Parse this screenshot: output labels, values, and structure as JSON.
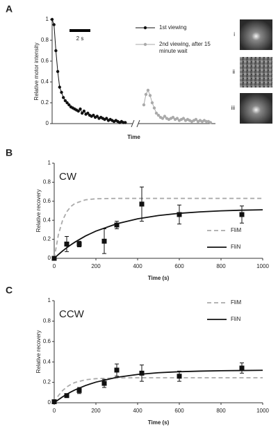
{
  "chart_data": [
    {
      "type": "line",
      "panel": "A",
      "ylabel": "Relative motor intensity",
      "xlabel": "Time",
      "xlim": [
        0,
        15.67
      ],
      "ylim": [
        0,
        1
      ],
      "yticks": [
        0,
        0.2,
        0.4,
        0.6,
        0.8,
        1
      ],
      "x_break": 8,
      "scale_bar": {
        "label": "2 s",
        "length": 2
      },
      "insets": [
        "i",
        "ii",
        "iii"
      ],
      "series": [
        {
          "name": "1st viewing",
          "color": "#111111",
          "marker": "circle",
          "line": true,
          "x": [
            0,
            0.18,
            0.36,
            0.54,
            0.72,
            0.9,
            1.08,
            1.26,
            1.44,
            1.62,
            1.8,
            1.98,
            2.16,
            2.34,
            2.52,
            2.7,
            2.88,
            3.06,
            3.24,
            3.42,
            3.6,
            3.78,
            3.96,
            4.14,
            4.32,
            4.5,
            4.68,
            4.86,
            5.04,
            5.22,
            5.4,
            5.58,
            5.76,
            5.94,
            6.12,
            6.3,
            6.48,
            6.66,
            6.84,
            7.02
          ],
          "values": [
            1,
            0.95,
            0.7,
            0.5,
            0.35,
            0.3,
            0.25,
            0.22,
            0.2,
            0.18,
            0.16,
            0.15,
            0.14,
            0.13,
            0.12,
            0.14,
            0.1,
            0.12,
            0.09,
            0.1,
            0.08,
            0.07,
            0.08,
            0.06,
            0.07,
            0.05,
            0.06,
            0.05,
            0.04,
            0.05,
            0.03,
            0.04,
            0.03,
            0.02,
            0.03,
            0.02,
            0.01,
            0.02,
            0.01,
            0.01
          ]
        },
        {
          "name": "2nd viewing, after 15 minute wait",
          "color": "#aaaaaa",
          "marker": "circle",
          "line": true,
          "x": [
            8.8,
            9,
            9.2,
            9.4,
            9.6,
            9.8,
            10,
            10.2,
            10.4,
            10.6,
            10.8,
            11,
            11.2,
            11.4,
            11.6,
            11.8,
            12,
            12.2,
            12.4,
            12.6,
            12.8,
            13,
            13.2,
            13.4,
            13.6,
            13.8,
            14,
            14.2,
            14.4,
            14.6,
            14.8,
            15,
            15.2
          ],
          "values": [
            0.18,
            0.28,
            0.32,
            0.27,
            0.2,
            0.15,
            0.1,
            0.08,
            0.06,
            0.05,
            0.07,
            0.05,
            0.04,
            0.05,
            0.06,
            0.04,
            0.05,
            0.03,
            0.04,
            0.05,
            0.03,
            0.04,
            0.03,
            0.02,
            0.03,
            0.04,
            0.02,
            0.03,
            0.02,
            0.03,
            0.02,
            0.02,
            0.01
          ]
        }
      ]
    },
    {
      "type": "line",
      "panel": "B",
      "annotation": "CW",
      "ylabel": "Relative recovery",
      "xlabel": "Time (s)",
      "xlim": [
        0,
        1000
      ],
      "xticks": [
        0,
        200,
        400,
        600,
        800,
        1000
      ],
      "ylim": [
        0,
        1
      ],
      "yticks": [
        0,
        0.2,
        0.4,
        0.6,
        0.8,
        1
      ],
      "series": [
        {
          "name": "FliM",
          "color": "#aaaaaa",
          "line": true,
          "dashed": true,
          "x": [
            0,
            20,
            40,
            60,
            80,
            100,
            150,
            200,
            300,
            400,
            500,
            600,
            700,
            800,
            900,
            1000
          ],
          "values": [
            0,
            0.248,
            0.398,
            0.489,
            0.545,
            0.578,
            0.615,
            0.626,
            0.63,
            0.63,
            0.63,
            0.63,
            0.63,
            0.63,
            0.63,
            0.63
          ]
        },
        {
          "name": "FliN",
          "color": "#111111",
          "line": true,
          "x": [
            0,
            20,
            40,
            60,
            80,
            100,
            150,
            200,
            300,
            400,
            500,
            600,
            700,
            800,
            900,
            1000
          ],
          "values": [
            0,
            0.04,
            0.077,
            0.111,
            0.142,
            0.171,
            0.235,
            0.286,
            0.363,
            0.415,
            0.45,
            0.473,
            0.488,
            0.499,
            0.506,
            0.51
          ]
        },
        {
          "color": "#111111",
          "marker": "square",
          "line": false,
          "x": [
            0,
            60,
            120,
            240,
            300,
            420,
            600,
            900
          ],
          "values": [
            0,
            0.15,
            0.15,
            0.18,
            0.35,
            0.57,
            0.46,
            0.46
          ],
          "errors": [
            0,
            0.08,
            0.03,
            0.13,
            0.04,
            0.18,
            0.1,
            0.09
          ]
        }
      ]
    },
    {
      "type": "line",
      "panel": "C",
      "annotation": "CCW",
      "ylabel": "Relative recovery",
      "xlabel": "Time (s)",
      "xlim": [
        0,
        1000
      ],
      "xticks": [
        0,
        200,
        400,
        600,
        800,
        1000
      ],
      "ylim": [
        0,
        1
      ],
      "yticks": [
        0,
        0.2,
        0.4,
        0.6,
        0.8,
        1
      ],
      "series": [
        {
          "name": "FliM",
          "color": "#aaaaaa",
          "line": true,
          "dashed": true,
          "x": [
            0,
            20,
            40,
            60,
            80,
            100,
            150,
            200,
            300,
            400,
            500,
            600,
            700,
            800,
            900,
            1000
          ],
          "values": [
            0,
            0.07,
            0.119,
            0.155,
            0.18,
            0.199,
            0.225,
            0.236,
            0.243,
            0.245,
            0.245,
            0.245,
            0.245,
            0.245,
            0.245,
            0.245
          ]
        },
        {
          "name": "FliN",
          "color": "#111111",
          "line": true,
          "x": [
            0,
            20,
            40,
            60,
            80,
            100,
            150,
            200,
            300,
            400,
            500,
            600,
            700,
            800,
            900,
            1000
          ],
          "values": [
            0,
            0.03,
            0.058,
            0.083,
            0.106,
            0.126,
            0.169,
            0.202,
            0.249,
            0.277,
            0.294,
            0.304,
            0.31,
            0.314,
            0.316,
            0.318
          ]
        },
        {
          "color": "#111111",
          "marker": "square",
          "line": false,
          "x": [
            0,
            60,
            120,
            240,
            300,
            420,
            600,
            900
          ],
          "values": [
            0.01,
            0.07,
            0.12,
            0.19,
            0.32,
            0.29,
            0.26,
            0.34
          ],
          "errors": [
            0.01,
            0.01,
            0.03,
            0.04,
            0.06,
            0.08,
            0.05,
            0.05
          ]
        }
      ]
    }
  ]
}
